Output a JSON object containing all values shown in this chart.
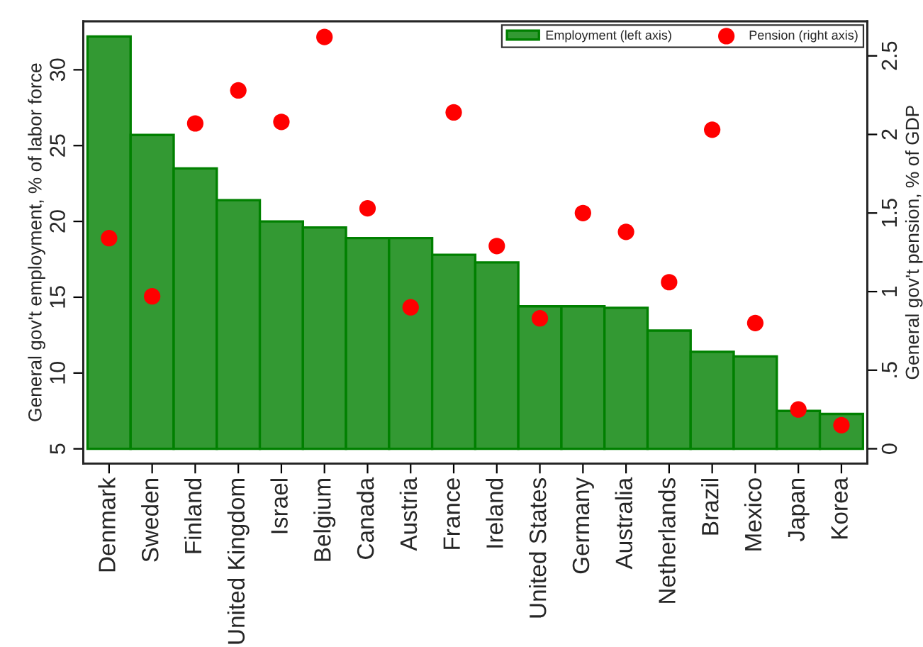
{
  "chart_data": {
    "type": "bar",
    "categories": [
      "Denmark",
      "Sweden",
      "Finland",
      "United Kingdom",
      "Israel",
      "Belgium",
      "Canada",
      "Austria",
      "France",
      "Ireland",
      "United States",
      "Germany",
      "Australia",
      "Netherlands",
      "Brazil",
      "Mexico",
      "Japan",
      "Korea"
    ],
    "series": [
      {
        "name": "Employment (left axis)",
        "color": "#339933",
        "base": [
          5,
          5,
          5,
          5,
          5,
          5,
          5,
          5,
          5,
          5,
          5,
          5,
          5,
          5,
          5,
          5,
          5,
          5
        ],
        "values": [
          27.2,
          20.7,
          18.5,
          16.4,
          15.0,
          14.6,
          13.9,
          13.9,
          12.8,
          12.3,
          9.4,
          9.4,
          9.3,
          7.8,
          6.4,
          6.1,
          2.5,
          2.3
        ]
      },
      {
        "name": "Pension (right axis)",
        "type": "scatter",
        "axis": "y2",
        "color": "#ff0000",
        "marker": "circle",
        "values": [
          1.34,
          0.97,
          2.07,
          2.28,
          2.08,
          2.62,
          1.53,
          0.9,
          2.14,
          1.29,
          0.83,
          1.5,
          1.38,
          1.06,
          2.03,
          0.8,
          0.25,
          0.15
        ]
      }
    ],
    "ylabel": "General gov't employment, % of labor force",
    "y2label": "General gov't pension, % of GDP",
    "ylim": [
      4.03,
      33.2
    ],
    "yticks": [
      5,
      10,
      15,
      20,
      25,
      30
    ],
    "y2lim": [
      -0.094,
      2.72
    ],
    "y2ticks": [
      0,
      {
        "value": 0.5,
        "label": ".5"
      },
      1,
      1.5,
      2,
      2.5
    ],
    "grid": false,
    "legend": "top right"
  }
}
